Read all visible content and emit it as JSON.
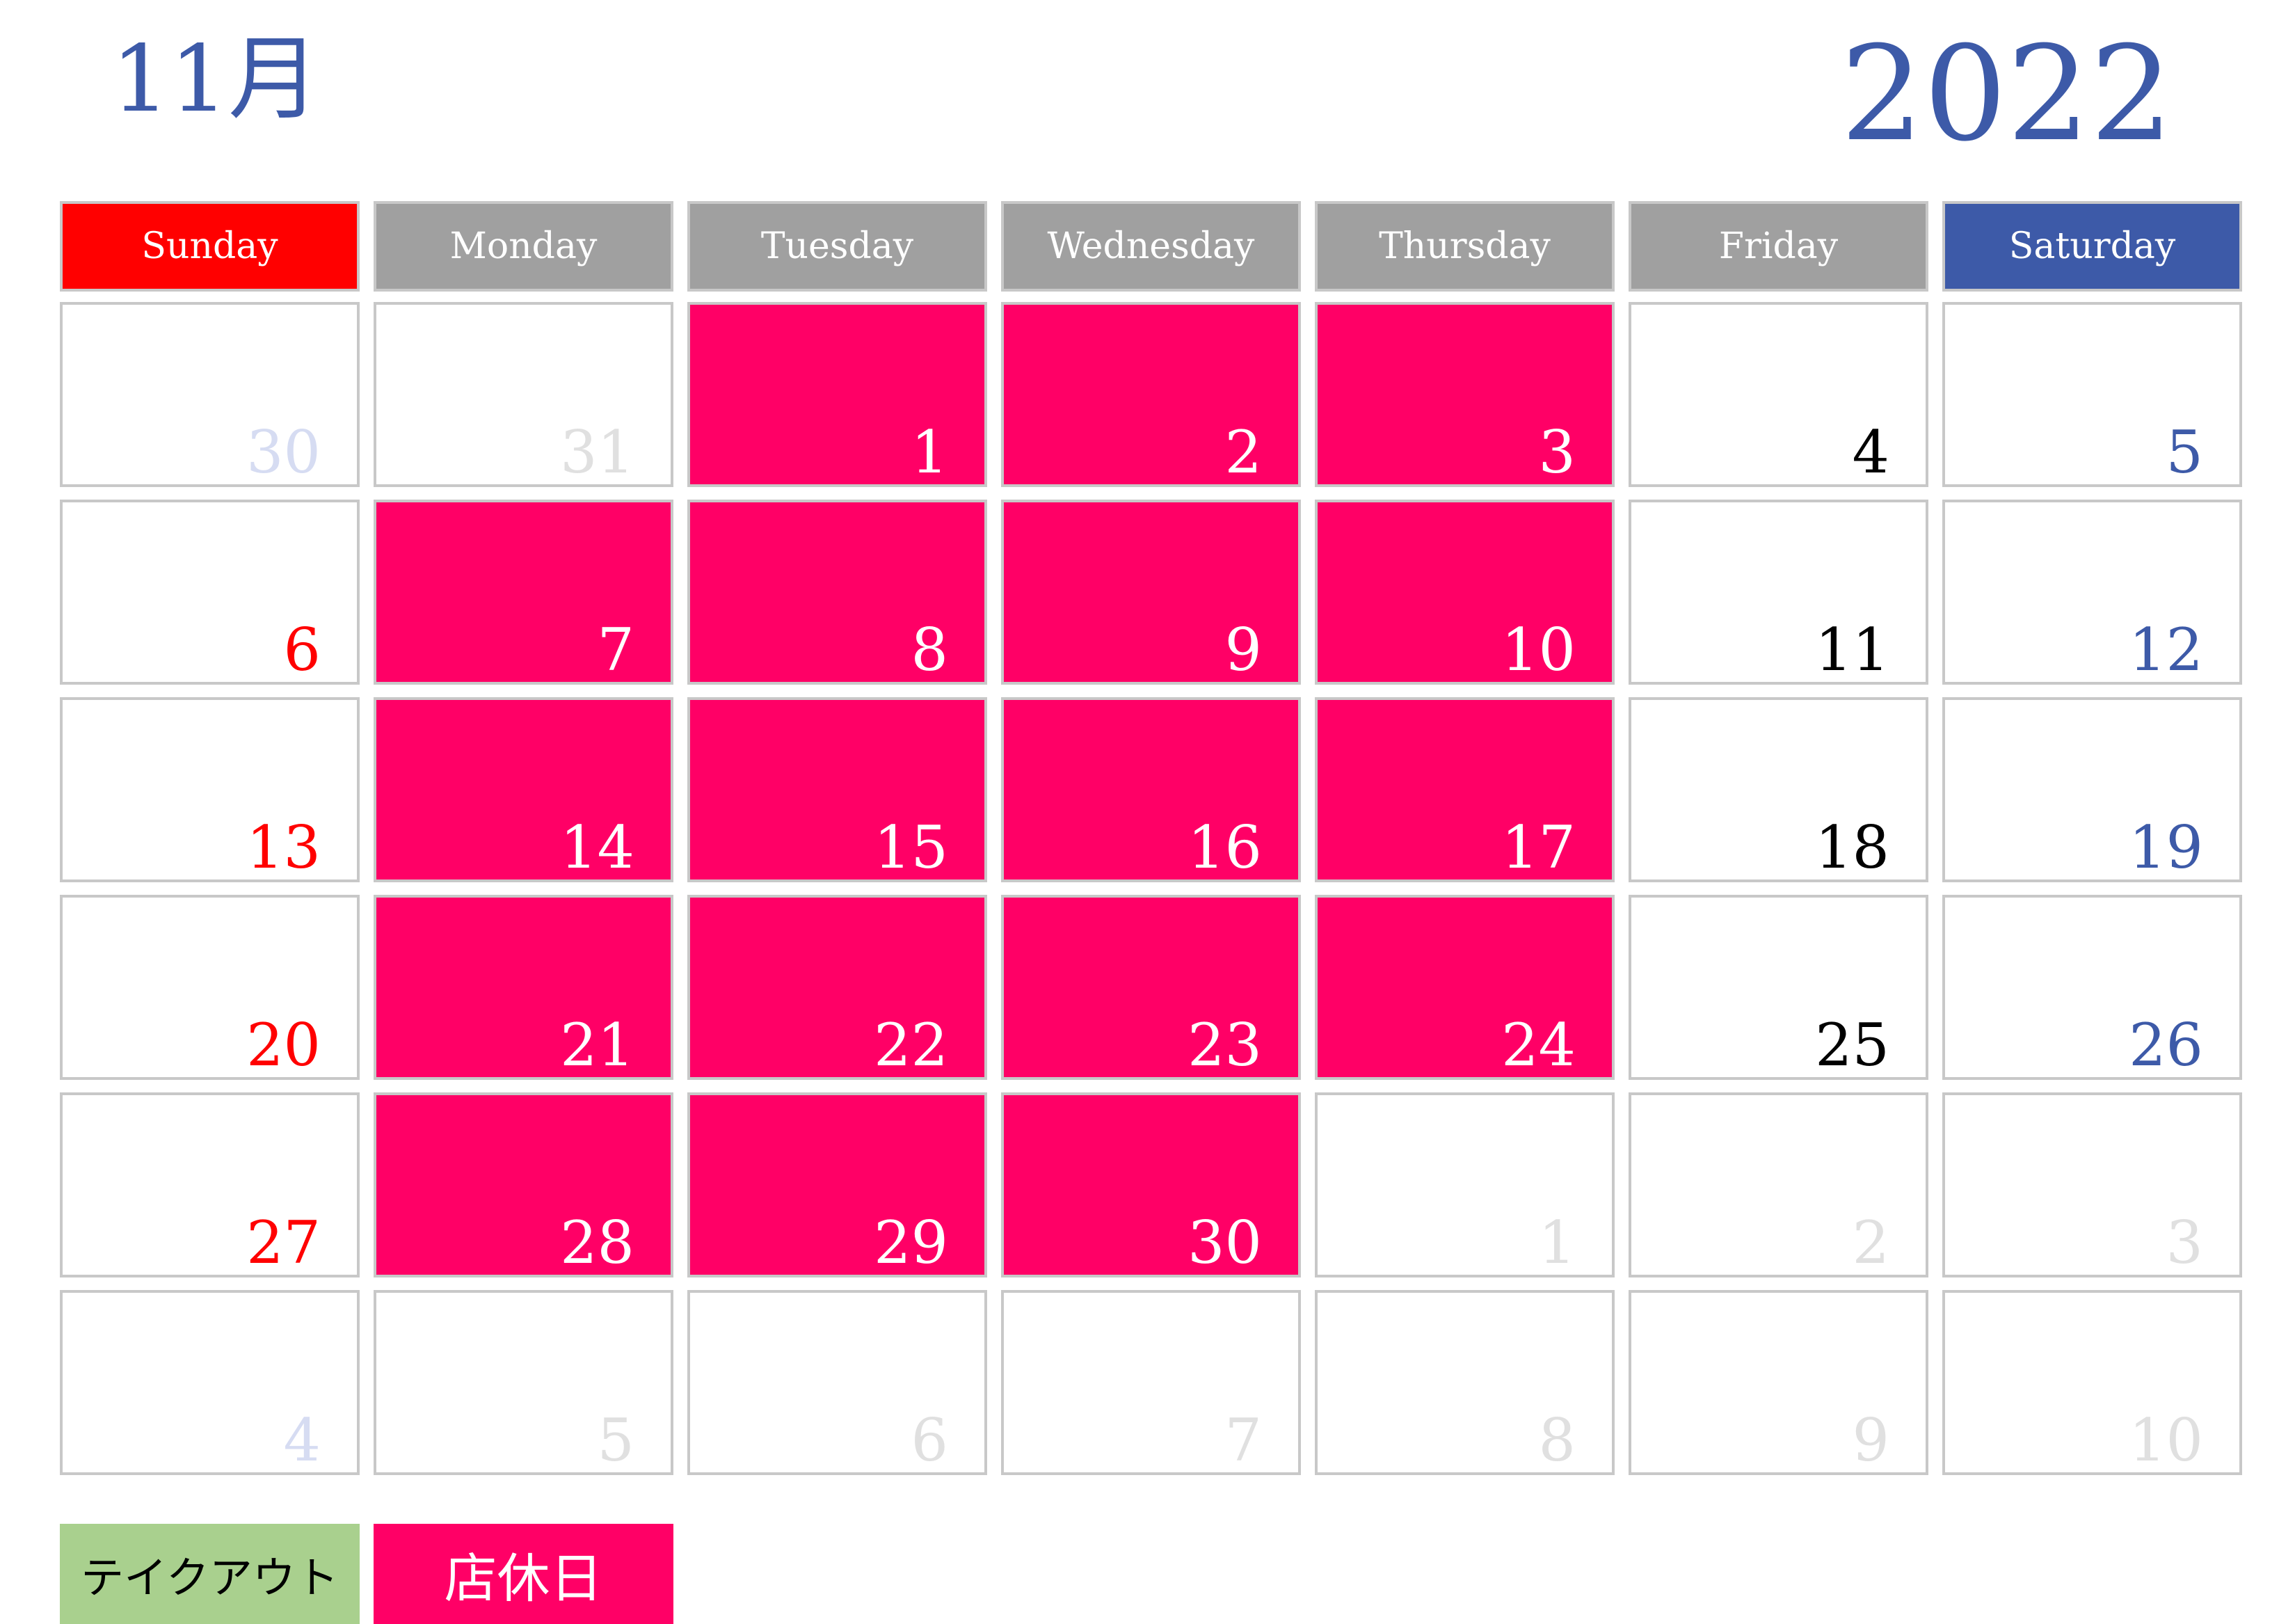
{
  "header": {
    "month": "11月",
    "year": "2022"
  },
  "weekdays": [
    "Sunday",
    "Monday",
    "Tuesday",
    "Wednesday",
    "Thursday",
    "Friday",
    "Saturday"
  ],
  "colors": {
    "accent_blue": "#3d5aa8",
    "sunday_red": "#ff0000",
    "closed_pink": "#ff0066",
    "takeout_green": "#a9d08e",
    "weekday_gray": "#a0a0a0"
  },
  "weeks": [
    [
      {
        "d": "30",
        "t": "other-sun"
      },
      {
        "d": "31",
        "t": "other"
      },
      {
        "d": "1",
        "t": "closed"
      },
      {
        "d": "2",
        "t": "closed"
      },
      {
        "d": "3",
        "t": "closed"
      },
      {
        "d": "4",
        "t": "wk"
      },
      {
        "d": "5",
        "t": "sat"
      }
    ],
    [
      {
        "d": "6",
        "t": "sun"
      },
      {
        "d": "7",
        "t": "closed"
      },
      {
        "d": "8",
        "t": "closed"
      },
      {
        "d": "9",
        "t": "closed"
      },
      {
        "d": "10",
        "t": "closed"
      },
      {
        "d": "11",
        "t": "wk"
      },
      {
        "d": "12",
        "t": "sat"
      }
    ],
    [
      {
        "d": "13",
        "t": "sun"
      },
      {
        "d": "14",
        "t": "closed"
      },
      {
        "d": "15",
        "t": "closed"
      },
      {
        "d": "16",
        "t": "closed"
      },
      {
        "d": "17",
        "t": "closed"
      },
      {
        "d": "18",
        "t": "wk"
      },
      {
        "d": "19",
        "t": "sat"
      }
    ],
    [
      {
        "d": "20",
        "t": "sun"
      },
      {
        "d": "21",
        "t": "closed"
      },
      {
        "d": "22",
        "t": "closed"
      },
      {
        "d": "23",
        "t": "closed"
      },
      {
        "d": "24",
        "t": "closed"
      },
      {
        "d": "25",
        "t": "wk"
      },
      {
        "d": "26",
        "t": "sat"
      }
    ],
    [
      {
        "d": "27",
        "t": "sun"
      },
      {
        "d": "28",
        "t": "closed"
      },
      {
        "d": "29",
        "t": "closed"
      },
      {
        "d": "30",
        "t": "closed"
      },
      {
        "d": "1",
        "t": "other"
      },
      {
        "d": "2",
        "t": "other"
      },
      {
        "d": "3",
        "t": "other"
      }
    ],
    [
      {
        "d": "4",
        "t": "other-sun"
      },
      {
        "d": "5",
        "t": "other"
      },
      {
        "d": "6",
        "t": "other"
      },
      {
        "d": "7",
        "t": "other"
      },
      {
        "d": "8",
        "t": "other"
      },
      {
        "d": "9",
        "t": "other"
      },
      {
        "d": "10",
        "t": "other"
      }
    ]
  ],
  "legend": {
    "takeout": "テイクアウト",
    "closed": "店休日"
  }
}
